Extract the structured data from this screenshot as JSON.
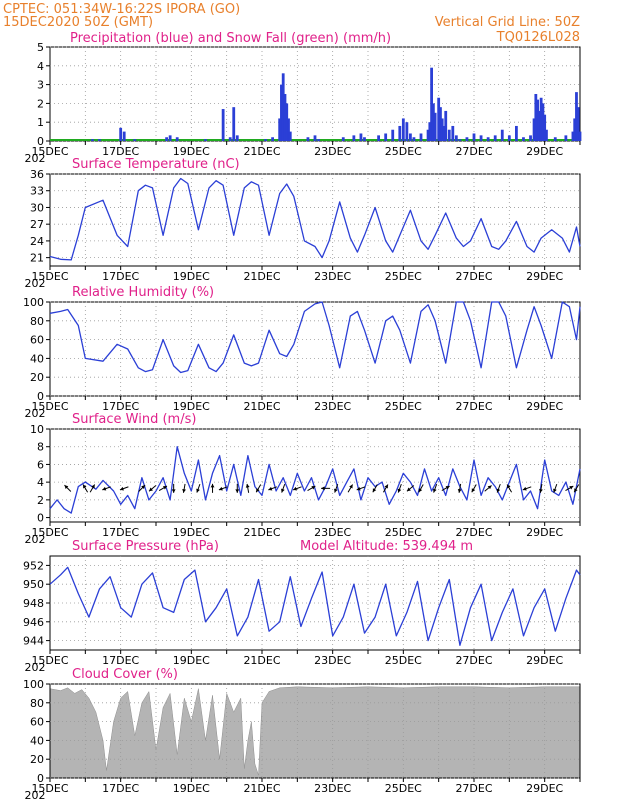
{
  "header": {
    "line1_left": "CPTEC:  051:34W-16:22S  IPORA (GO)",
    "line2_left": "15DEC2020 50Z (GMT)",
    "line2_right": "Vertical Grid Line: 50Z",
    "line3_right": "TQ0126L028"
  },
  "colors": {
    "header": "#e8802c",
    "title": "#e0218a",
    "series": "#2b3fd6",
    "snow": "#1faa1f",
    "cloud": "#b4b4b4",
    "grid": "#9a9a9a",
    "arrow": "#000000"
  },
  "chart_data": [
    {
      "id": "precip",
      "type": "bar",
      "title": "Precipitation (blue) and Snow Fall (green) (mm/h)",
      "ylim": [
        0,
        5
      ],
      "yticks": [
        "0",
        "1",
        "2",
        "3",
        "4",
        "5"
      ],
      "xticks": [
        "15DEC",
        "17DEC",
        "19DEC",
        "21DEC",
        "23DEC",
        "25DEC",
        "27DEC",
        "29DEC"
      ],
      "year_label": "202",
      "x_days": [
        16.2,
        16.4,
        17.0,
        17.1,
        17.4,
        18.3,
        18.4,
        18.6,
        19.4,
        19.9,
        20.1,
        20.2,
        20.3,
        21.1,
        21.3,
        21.5,
        21.55,
        21.6,
        21.65,
        21.7,
        21.75,
        21.8,
        22.3,
        22.5,
        22.6,
        23.3,
        23.6,
        23.8,
        23.9,
        24.3,
        24.5,
        24.7,
        24.9,
        25.0,
        25.1,
        25.2,
        25.3,
        25.5,
        25.7,
        25.75,
        25.8,
        25.85,
        25.9,
        26.0,
        26.05,
        26.1,
        26.15,
        26.2,
        26.3,
        26.4,
        26.5,
        26.6,
        26.8,
        27.0,
        27.2,
        27.4,
        27.6,
        27.8,
        28.0,
        28.2,
        28.4,
        28.6,
        28.7,
        28.75,
        28.8,
        28.85,
        28.9,
        28.95,
        29.0,
        29.05,
        29.3,
        29.6,
        29.8,
        29.85,
        29.9,
        29.95,
        30.0
      ],
      "values": [
        0.1,
        0.1,
        0.7,
        0.5,
        0.1,
        0.2,
        0.3,
        0.2,
        0.1,
        1.7,
        0.2,
        1.8,
        0.3,
        0.1,
        0.2,
        1.2,
        3.0,
        3.6,
        2.5,
        2.0,
        1.2,
        0.5,
        0.2,
        0.3,
        0.1,
        0.2,
        0.3,
        0.4,
        0.2,
        0.3,
        0.4,
        0.6,
        0.8,
        1.2,
        1.0,
        0.4,
        0.2,
        0.4,
        0.6,
        1.0,
        3.9,
        2.0,
        1.5,
        2.3,
        1.8,
        1.2,
        0.8,
        1.6,
        0.6,
        0.8,
        0.3,
        0.1,
        0.2,
        0.4,
        0.3,
        0.2,
        0.3,
        0.6,
        0.3,
        0.8,
        0.2,
        0.3,
        1.2,
        2.5,
        2.2,
        1.6,
        2.3,
        2.0,
        1.4,
        0.6,
        0.2,
        0.3,
        0.5,
        1.2,
        2.6,
        1.8,
        0.5
      ]
    },
    {
      "id": "temp",
      "type": "line",
      "title": "Surface Temperature (nC)",
      "ylim": [
        19.5,
        36
      ],
      "yticks": [
        "21",
        "24",
        "27",
        "30",
        "33",
        "36"
      ],
      "xticks": [
        "15DEC",
        "17DEC",
        "19DEC",
        "21DEC",
        "23DEC",
        "25DEC",
        "27DEC",
        "29DEC"
      ],
      "year_label": "202",
      "x": [
        15.0,
        15.3,
        15.6,
        15.8,
        16.0,
        16.5,
        16.9,
        17.2,
        17.5,
        17.7,
        17.9,
        18.2,
        18.5,
        18.7,
        18.9,
        19.2,
        19.5,
        19.7,
        19.9,
        20.2,
        20.5,
        20.7,
        20.9,
        21.2,
        21.5,
        21.7,
        21.9,
        22.2,
        22.5,
        22.7,
        22.9,
        23.2,
        23.5,
        23.7,
        23.9,
        24.2,
        24.5,
        24.7,
        24.9,
        25.2,
        25.5,
        25.7,
        25.9,
        26.2,
        26.5,
        26.7,
        26.9,
        27.2,
        27.5,
        27.7,
        27.9,
        28.2,
        28.5,
        28.7,
        28.9,
        29.2,
        29.5,
        29.7,
        29.9,
        30.0
      ],
      "y": [
        21.2,
        20.7,
        20.6,
        25.0,
        30.0,
        31.3,
        25.0,
        23.0,
        33.0,
        34.0,
        33.5,
        25.0,
        33.5,
        35.2,
        34.3,
        26.0,
        33.5,
        34.8,
        34.0,
        25.0,
        33.5,
        34.6,
        34.0,
        25.0,
        32.5,
        34.2,
        32.0,
        24.0,
        23.0,
        21.0,
        24.0,
        31.0,
        24.5,
        22.0,
        25.0,
        30.0,
        24.0,
        22.0,
        25.0,
        29.5,
        24.0,
        22.5,
        25.0,
        29.0,
        24.5,
        23.0,
        24.0,
        28.0,
        23.0,
        22.5,
        24.0,
        27.5,
        23.0,
        22.0,
        24.5,
        26.0,
        24.5,
        22.0,
        26.5,
        23.0
      ]
    },
    {
      "id": "rh",
      "type": "line",
      "title": "Relative Humidity (%)",
      "ylim": [
        0,
        100
      ],
      "yticks": [
        "0",
        "20",
        "40",
        "60",
        "80",
        "100"
      ],
      "xticks": [
        "15DEC",
        "17DEC",
        "19DEC",
        "21DEC",
        "23DEC",
        "25DEC",
        "27DEC",
        "29DEC"
      ],
      "year_label": "202",
      "x": [
        15.0,
        15.3,
        15.5,
        15.8,
        16.0,
        16.5,
        16.9,
        17.2,
        17.5,
        17.7,
        17.9,
        18.2,
        18.5,
        18.7,
        18.9,
        19.2,
        19.5,
        19.7,
        19.9,
        20.2,
        20.5,
        20.7,
        20.9,
        21.2,
        21.5,
        21.7,
        21.9,
        22.2,
        22.5,
        22.7,
        22.9,
        23.2,
        23.5,
        23.7,
        23.9,
        24.2,
        24.5,
        24.7,
        24.9,
        25.2,
        25.5,
        25.7,
        25.9,
        26.2,
        26.5,
        26.7,
        26.9,
        27.2,
        27.5,
        27.7,
        27.9,
        28.2,
        28.5,
        28.7,
        28.9,
        29.2,
        29.5,
        29.7,
        29.9,
        30.0
      ],
      "y": [
        88,
        90,
        92,
        75,
        40,
        37,
        55,
        50,
        30,
        26,
        28,
        60,
        32,
        25,
        27,
        55,
        30,
        26,
        35,
        65,
        35,
        32,
        35,
        70,
        45,
        42,
        55,
        90,
        98,
        100,
        75,
        30,
        85,
        90,
        70,
        35,
        80,
        85,
        70,
        35,
        90,
        97,
        80,
        35,
        100,
        100,
        80,
        30,
        100,
        100,
        85,
        30,
        70,
        95,
        75,
        40,
        100,
        95,
        60,
        95
      ]
    },
    {
      "id": "wind",
      "type": "line",
      "title": "Surface Wind (m/s)",
      "ylim": [
        -0.5,
        10
      ],
      "yticks": [
        "0",
        "2",
        "4",
        "6",
        "8",
        "10"
      ],
      "xticks": [
        "15DEC",
        "17DEC",
        "19DEC",
        "21DEC",
        "23DEC",
        "25DEC",
        "27DEC",
        "29DEC"
      ],
      "year_label": "202",
      "x": [
        15.0,
        15.2,
        15.4,
        15.6,
        15.8,
        16.0,
        16.3,
        16.5,
        16.8,
        17.0,
        17.2,
        17.4,
        17.6,
        17.8,
        18.0,
        18.2,
        18.4,
        18.6,
        18.8,
        19.0,
        19.2,
        19.4,
        19.6,
        19.8,
        20.0,
        20.2,
        20.4,
        20.6,
        20.8,
        21.0,
        21.2,
        21.4,
        21.6,
        21.8,
        22.0,
        22.2,
        22.4,
        22.6,
        22.8,
        23.0,
        23.2,
        23.4,
        23.6,
        23.8,
        24.0,
        24.2,
        24.4,
        24.6,
        24.8,
        25.0,
        25.2,
        25.4,
        25.6,
        25.8,
        26.0,
        26.2,
        26.4,
        26.6,
        26.8,
        27.0,
        27.2,
        27.4,
        27.6,
        27.8,
        28.0,
        28.2,
        28.4,
        28.6,
        28.8,
        29.0,
        29.2,
        29.4,
        29.6,
        29.8,
        30.0
      ],
      "y": [
        1.0,
        2.0,
        1.0,
        0.5,
        3.5,
        4.0,
        3.2,
        4.2,
        3.0,
        1.5,
        2.5,
        1.0,
        4.5,
        2.0,
        3.0,
        4.5,
        2.0,
        8.0,
        5.0,
        3.0,
        6.5,
        2.0,
        5.0,
        7.0,
        3.0,
        6.0,
        2.5,
        7.0,
        3.5,
        2.5,
        6.0,
        3.0,
        4.5,
        2.5,
        5.0,
        3.0,
        4.5,
        2.0,
        3.5,
        5.5,
        2.5,
        4.0,
        5.5,
        2.0,
        4.5,
        3.5,
        4.0,
        1.5,
        3.0,
        5.0,
        4.0,
        2.5,
        5.5,
        3.0,
        4.5,
        2.5,
        5.5,
        3.5,
        2.0,
        6.5,
        2.5,
        4.5,
        3.5,
        2.0,
        4.0,
        6.0,
        2.0,
        3.0,
        1.0,
        6.5,
        3.0,
        2.5,
        4.0,
        1.5,
        5.5
      ],
      "arrows_x": [
        15.5,
        16.0,
        16.2,
        16.6,
        17.1,
        17.6,
        17.9,
        18.2,
        18.5,
        18.8,
        19.2,
        19.6,
        19.9,
        20.3,
        20.6,
        20.9,
        21.3,
        21.6,
        22.0,
        22.4,
        22.8,
        23.1,
        23.5,
        23.8,
        24.2,
        24.5,
        24.9,
        25.2,
        25.5,
        25.9,
        26.2,
        26.6,
        27.0,
        27.4,
        27.7,
        28.0,
        28.5,
        28.9,
        29.3,
        29.7,
        29.9
      ],
      "arrows_dir_deg": [
        135,
        120,
        60,
        200,
        200,
        45,
        220,
        30,
        270,
        260,
        250,
        90,
        200,
        270,
        100,
        240,
        200,
        250,
        200,
        30,
        180,
        250,
        60,
        200,
        240,
        60,
        250,
        220,
        240,
        250,
        30,
        260,
        240,
        40,
        250,
        120,
        200,
        260,
        250,
        30,
        240
      ]
    },
    {
      "id": "pressure",
      "type": "line",
      "title": "Surface Pressure (hPa)",
      "annotation": "Model Altitude: 539.494 m",
      "ylim": [
        943,
        953
      ],
      "yticks": [
        "944",
        "946",
        "948",
        "950",
        "952"
      ],
      "xticks": [
        "15DEC",
        "17DEC",
        "19DEC",
        "21DEC",
        "23DEC",
        "25DEC",
        "27DEC",
        "29DEC"
      ],
      "year_label": "202",
      "x": [
        15.0,
        15.3,
        15.5,
        15.8,
        16.1,
        16.4,
        16.7,
        17.0,
        17.3,
        17.6,
        17.9,
        18.2,
        18.5,
        18.8,
        19.1,
        19.4,
        19.7,
        20.0,
        20.3,
        20.6,
        20.9,
        21.2,
        21.5,
        21.8,
        22.1,
        22.4,
        22.7,
        23.0,
        23.3,
        23.6,
        23.9,
        24.2,
        24.5,
        24.8,
        25.1,
        25.4,
        25.7,
        26.0,
        26.3,
        26.6,
        26.9,
        27.2,
        27.5,
        27.8,
        28.1,
        28.4,
        28.7,
        29.0,
        29.3,
        29.6,
        29.9,
        30.0
      ],
      "y": [
        950.0,
        951.0,
        951.8,
        949.0,
        946.5,
        949.5,
        950.8,
        947.5,
        946.5,
        950.0,
        951.2,
        947.5,
        947.0,
        950.5,
        951.5,
        946.0,
        947.5,
        949.5,
        944.5,
        946.5,
        950.5,
        945.0,
        946.0,
        950.8,
        945.5,
        948.5,
        951.3,
        944.5,
        946.5,
        950.0,
        944.8,
        946.5,
        950.0,
        944.5,
        947.0,
        950.3,
        944.0,
        947.5,
        950.5,
        943.5,
        947.5,
        950.0,
        944.0,
        947.0,
        949.5,
        944.5,
        947.5,
        949.5,
        945.0,
        948.5,
        951.5,
        951.0
      ]
    },
    {
      "id": "cloud",
      "type": "area",
      "title": "Cloud Cover (%)",
      "ylim": [
        0,
        100
      ],
      "yticks": [
        "0",
        "20",
        "40",
        "60",
        "80",
        "100"
      ],
      "xticks": [
        "15DEC",
        "17DEC",
        "19DEC",
        "21DEC",
        "23DEC",
        "25DEC",
        "27DEC",
        "29DEC"
      ],
      "year_label": "202",
      "x": [
        15.0,
        15.3,
        15.5,
        15.7,
        15.9,
        16.1,
        16.3,
        16.5,
        16.6,
        16.8,
        17.0,
        17.2,
        17.4,
        17.6,
        17.8,
        18.0,
        18.2,
        18.4,
        18.6,
        18.8,
        19.0,
        19.2,
        19.4,
        19.6,
        19.8,
        20.0,
        20.2,
        20.4,
        20.5,
        20.6,
        20.7,
        20.8,
        20.9,
        21.0,
        21.2,
        21.5,
        22.0,
        23.0,
        24.0,
        25.0,
        26.0,
        27.0,
        28.0,
        29.0,
        30.0
      ],
      "y": [
        95,
        93,
        96,
        90,
        94,
        85,
        70,
        40,
        8,
        60,
        85,
        92,
        45,
        80,
        92,
        30,
        75,
        90,
        25,
        85,
        60,
        95,
        40,
        88,
        20,
        90,
        70,
        85,
        10,
        40,
        60,
        15,
        3,
        80,
        92,
        96,
        97,
        96,
        97,
        96,
        97,
        97,
        96,
        97,
        97
      ]
    }
  ]
}
